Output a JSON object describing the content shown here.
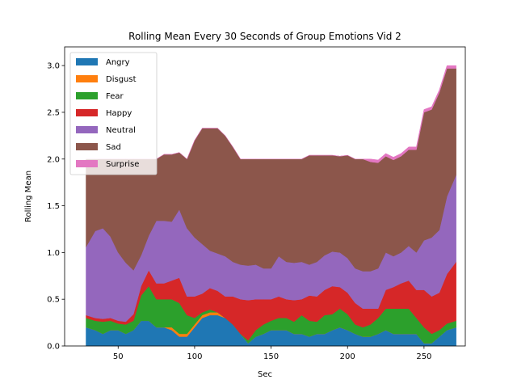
{
  "chart_data": {
    "type": "area",
    "stacked": true,
    "title": "Rolling Mean Every 30 Seconds of Group Emotions Vid 2",
    "xlabel": "Sec",
    "ylabel": "Rolling Mean",
    "xlim": [
      15,
      277
    ],
    "ylim": [
      0,
      3.2
    ],
    "xticks": [
      50,
      100,
      150,
      200,
      250
    ],
    "yticks": [
      0.0,
      0.5,
      1.0,
      1.5,
      2.0,
      2.5,
      3.0
    ],
    "ytick_labels": [
      "0.0",
      "0.5",
      "1.0",
      "1.5",
      "2.0",
      "2.5",
      "3.0"
    ],
    "xtick_labels": [
      "50",
      "100",
      "150",
      "200",
      "250"
    ],
    "grid": false,
    "legend_position": "top-left",
    "x": [
      29,
      35,
      40,
      45,
      50,
      55,
      60,
      65,
      70,
      75,
      80,
      85,
      90,
      95,
      100,
      105,
      110,
      115,
      120,
      125,
      130,
      135,
      140,
      145,
      150,
      155,
      160,
      165,
      170,
      175,
      180,
      185,
      190,
      195,
      200,
      205,
      210,
      215,
      220,
      225,
      230,
      235,
      240,
      245,
      250,
      255,
      260,
      265,
      271
    ],
    "series": [
      {
        "name": "Angry",
        "color": "#1f77b4",
        "values": [
          0.2,
          0.17,
          0.13,
          0.17,
          0.17,
          0.13,
          0.17,
          0.27,
          0.27,
          0.2,
          0.2,
          0.17,
          0.1,
          0.1,
          0.2,
          0.3,
          0.33,
          0.33,
          0.3,
          0.23,
          0.13,
          0.03,
          0.1,
          0.13,
          0.17,
          0.17,
          0.17,
          0.13,
          0.13,
          0.1,
          0.13,
          0.13,
          0.17,
          0.2,
          0.17,
          0.13,
          0.1,
          0.1,
          0.13,
          0.17,
          0.13,
          0.13,
          0.13,
          0.13,
          0.03,
          0.03,
          0.1,
          0.17,
          0.2
        ]
      },
      {
        "name": "Disgust",
        "color": "#ff7f0e",
        "values": [
          0,
          0,
          0,
          0,
          0,
          0,
          0,
          0,
          0,
          0,
          0,
          0.03,
          0.03,
          0.03,
          0.03,
          0.03,
          0.03,
          0.03,
          0,
          0,
          0,
          0,
          0,
          0,
          0,
          0,
          0,
          0,
          0,
          0,
          0,
          0,
          0,
          0,
          0,
          0,
          0,
          0,
          0,
          0,
          0,
          0,
          0,
          0,
          0,
          0,
          0,
          0,
          0
        ]
      },
      {
        "name": "Fear",
        "color": "#2ca02c",
        "values": [
          0.1,
          0.1,
          0.13,
          0.1,
          0.07,
          0.1,
          0.1,
          0.27,
          0.37,
          0.3,
          0.3,
          0.3,
          0.33,
          0.2,
          0.07,
          0.03,
          0.03,
          0.0,
          0.0,
          0.0,
          0.0,
          0.03,
          0.07,
          0.1,
          0.1,
          0.13,
          0.13,
          0.13,
          0.2,
          0.17,
          0.13,
          0.2,
          0.17,
          0.2,
          0.17,
          0.1,
          0.1,
          0.13,
          0.17,
          0.23,
          0.27,
          0.27,
          0.27,
          0.17,
          0.17,
          0.1,
          0.07,
          0.07,
          0.07
        ]
      },
      {
        "name": "Happy",
        "color": "#d62728",
        "values": [
          0.03,
          0.03,
          0.03,
          0.03,
          0.03,
          0.03,
          0.07,
          0.1,
          0.17,
          0.17,
          0.17,
          0.2,
          0.27,
          0.2,
          0.23,
          0.2,
          0.23,
          0.23,
          0.23,
          0.3,
          0.37,
          0.43,
          0.33,
          0.27,
          0.23,
          0.23,
          0.2,
          0.23,
          0.17,
          0.27,
          0.27,
          0.27,
          0.3,
          0.23,
          0.23,
          0.23,
          0.2,
          0.17,
          0.1,
          0.2,
          0.23,
          0.27,
          0.3,
          0.3,
          0.4,
          0.4,
          0.4,
          0.53,
          0.63
        ]
      },
      {
        "name": "Neutral",
        "color": "#9467bd",
        "values": [
          0.73,
          0.93,
          0.97,
          0.87,
          0.73,
          0.63,
          0.47,
          0.33,
          0.37,
          0.67,
          0.67,
          0.63,
          0.73,
          0.73,
          0.63,
          0.53,
          0.4,
          0.4,
          0.43,
          0.37,
          0.37,
          0.37,
          0.37,
          0.33,
          0.33,
          0.43,
          0.4,
          0.4,
          0.4,
          0.33,
          0.37,
          0.37,
          0.37,
          0.37,
          0.37,
          0.37,
          0.4,
          0.4,
          0.43,
          0.4,
          0.33,
          0.33,
          0.37,
          0.4,
          0.53,
          0.63,
          0.67,
          0.83,
          0.93
        ]
      },
      {
        "name": "Sad",
        "color": "#8c564b",
        "values": [
          0.94,
          0.77,
          0.74,
          0.83,
          1.0,
          1.11,
          1.19,
          1.03,
          0.82,
          0.66,
          0.71,
          0.72,
          0.61,
          0.74,
          1.04,
          1.24,
          1.31,
          1.34,
          1.29,
          1.23,
          1.13,
          1.14,
          1.13,
          1.17,
          1.17,
          1.04,
          1.1,
          1.11,
          1.1,
          1.17,
          1.14,
          1.07,
          1.03,
          1.03,
          1.1,
          1.17,
          1.2,
          1.17,
          1.13,
          1.03,
          1.03,
          1.03,
          1.03,
          1.1,
          1.37,
          1.37,
          1.47,
          1.37,
          1.14
        ]
      },
      {
        "name": "Surprise",
        "color": "#e377c2",
        "values": [
          0,
          0,
          0,
          0,
          0,
          0,
          0,
          0,
          0,
          0,
          0,
          0,
          0,
          0,
          0,
          0,
          0,
          0,
          0,
          0,
          0,
          0,
          0,
          0,
          0,
          0,
          0,
          0,
          0,
          0,
          0,
          0,
          0,
          0,
          0,
          0,
          0,
          0.03,
          0.03,
          0.03,
          0.03,
          0.03,
          0.03,
          0.03,
          0.03,
          0.03,
          0.03,
          0.03,
          0.03
        ]
      }
    ]
  }
}
